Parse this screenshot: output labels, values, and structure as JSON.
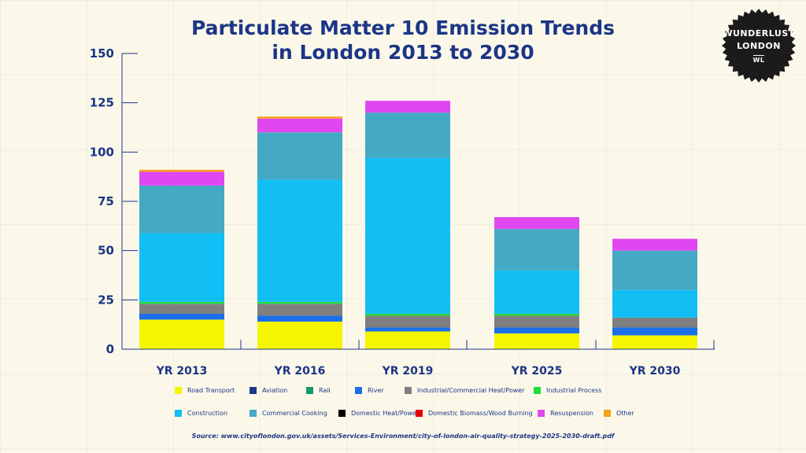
{
  "chart_data": {
    "type": "bar",
    "stacked": true,
    "title_lines": [
      "Particulate Matter 10 Emission Trends",
      "in London 2013 to 2030"
    ],
    "categories": [
      "YR 2013",
      "YR 2016",
      "YR 2019",
      "YR 2025",
      "YR 2030"
    ],
    "ylim": [
      0,
      150
    ],
    "yticks": [
      "0",
      "25",
      "50",
      "75",
      "100",
      "125",
      "150"
    ],
    "ytick_values": [
      0,
      25,
      50,
      75,
      100,
      125,
      150
    ],
    "series": [
      {
        "name": "Road Transport",
        "color": "#f5f500",
        "values": [
          15,
          14,
          9,
          8,
          7
        ]
      },
      {
        "name": "Aviation",
        "color": "#1b3a8c",
        "values": [
          0,
          0,
          0,
          0,
          0
        ]
      },
      {
        "name": "Rail",
        "color": "#13996b",
        "values": [
          0,
          0,
          0,
          0,
          0
        ]
      },
      {
        "name": "River",
        "color": "#1a6fe8",
        "values": [
          3,
          3,
          2,
          3,
          4
        ]
      },
      {
        "name": "Industrial/Commercial Heat/Power",
        "color": "#7f7f7f",
        "values": [
          5,
          6,
          6,
          6,
          5
        ]
      },
      {
        "name": "Industrial Process",
        "color": "#1fdc3c",
        "values": [
          1,
          1,
          1,
          1,
          0
        ]
      },
      {
        "name": "Construction",
        "color": "#12bff5",
        "values": [
          35,
          62,
          79,
          22,
          14
        ]
      },
      {
        "name": "Commercial Cooking",
        "color": "#44a9c4",
        "values": [
          24,
          24,
          23,
          21,
          20
        ]
      },
      {
        "name": "Domestic Heat/Power",
        "color": "#000000",
        "values": [
          0,
          0,
          0,
          0,
          0
        ]
      },
      {
        "name": "Domestic Biomass/Wood Burning",
        "color": "#e50000",
        "values": [
          0,
          0,
          0,
          0,
          0
        ]
      },
      {
        "name": "Resuspension",
        "color": "#e047f0",
        "values": [
          7,
          7,
          6,
          6,
          6
        ]
      },
      {
        "name": "Other",
        "color": "#f5a21a",
        "values": [
          1,
          1,
          0,
          0,
          0
        ]
      }
    ],
    "xlabel": "",
    "ylabel": "",
    "source": "Source: www.cityoflondon.gov.uk/assets/Services-Environment/city-of-london-air-quality-strategy-2025-2030-draft.pdf"
  },
  "badge": {
    "line1": "WUNDERLUST",
    "line2": "LONDON",
    "line3": "WL"
  }
}
